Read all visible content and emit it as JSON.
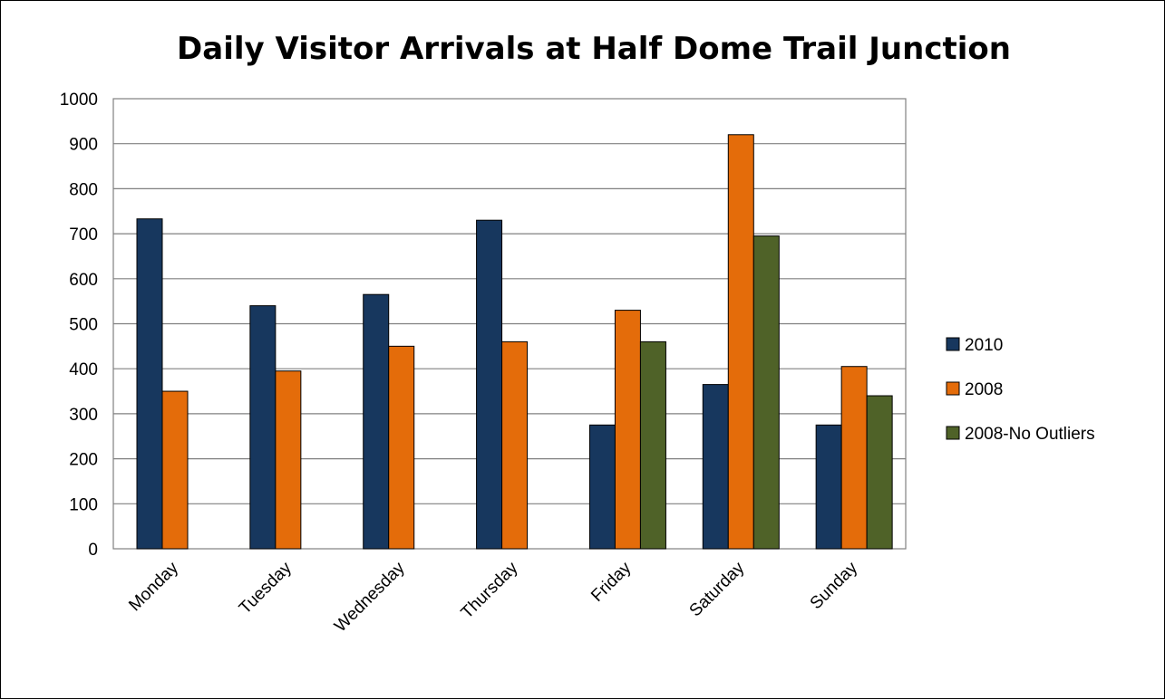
{
  "chart_data": {
    "type": "bar",
    "title": "Daily Visitor Arrivals at Half Dome Trail Junction",
    "categories": [
      "Monday",
      "Tuesday",
      "Wednesday",
      "Thursday",
      "Friday",
      "Saturday",
      "Sunday"
    ],
    "series": [
      {
        "name": "2010",
        "color": "#17375E",
        "values": [
          733,
          540,
          565,
          730,
          275,
          365,
          275
        ]
      },
      {
        "name": "2008",
        "color": "#E46C0A",
        "values": [
          350,
          395,
          450,
          460,
          530,
          920,
          405
        ]
      },
      {
        "name": "2008-No Outliers",
        "color": "#4F6228",
        "values": [
          null,
          null,
          null,
          null,
          460,
          695,
          340
        ]
      }
    ],
    "ylim": [
      0,
      1000
    ],
    "yticks": [
      "0",
      "100",
      "200",
      "300",
      "400",
      "500",
      "600",
      "700",
      "800",
      "900",
      "1000"
    ],
    "grid": true,
    "legend_position": "right",
    "xlabel": "",
    "ylabel": ""
  }
}
